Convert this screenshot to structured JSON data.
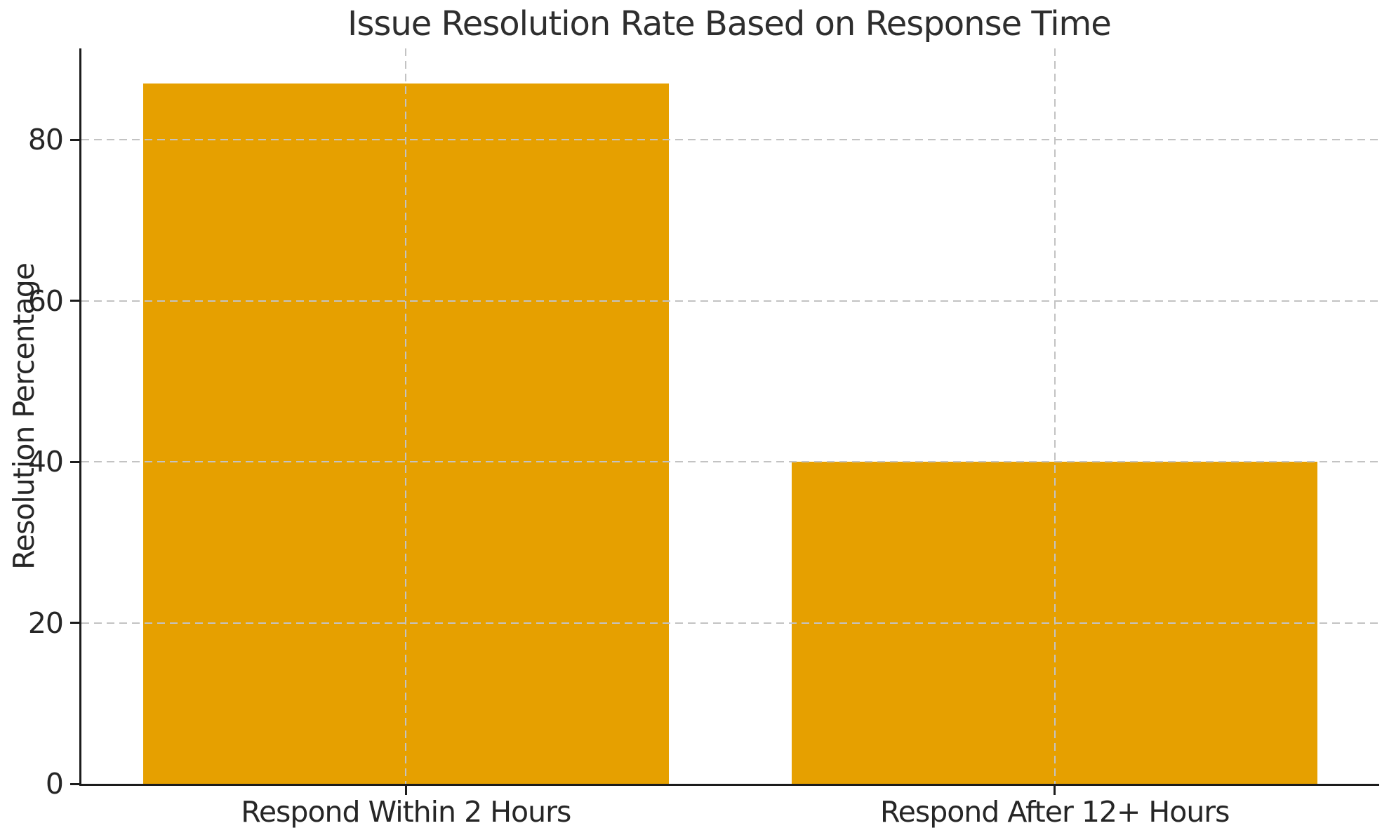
{
  "chart_data": {
    "type": "bar",
    "title": "Issue Resolution Rate Based on Response Time",
    "ylabel": "Resolution Percentage",
    "xlabel": "",
    "categories": [
      "Respond Within 2 Hours",
      "Respond After 12+ Hours"
    ],
    "values": [
      87,
      40
    ],
    "yticks": [
      0,
      20,
      40,
      60,
      80
    ],
    "ylim": [
      0,
      91.35
    ],
    "bar_color": "#E6A000",
    "grid_color": "#c3c3c3",
    "axis_color": "#1c1c1c",
    "text_color": "#262626",
    "grid_style": "dashed",
    "grid_on": true,
    "legend_position": "none",
    "bar_width_fraction": 0.405
  }
}
